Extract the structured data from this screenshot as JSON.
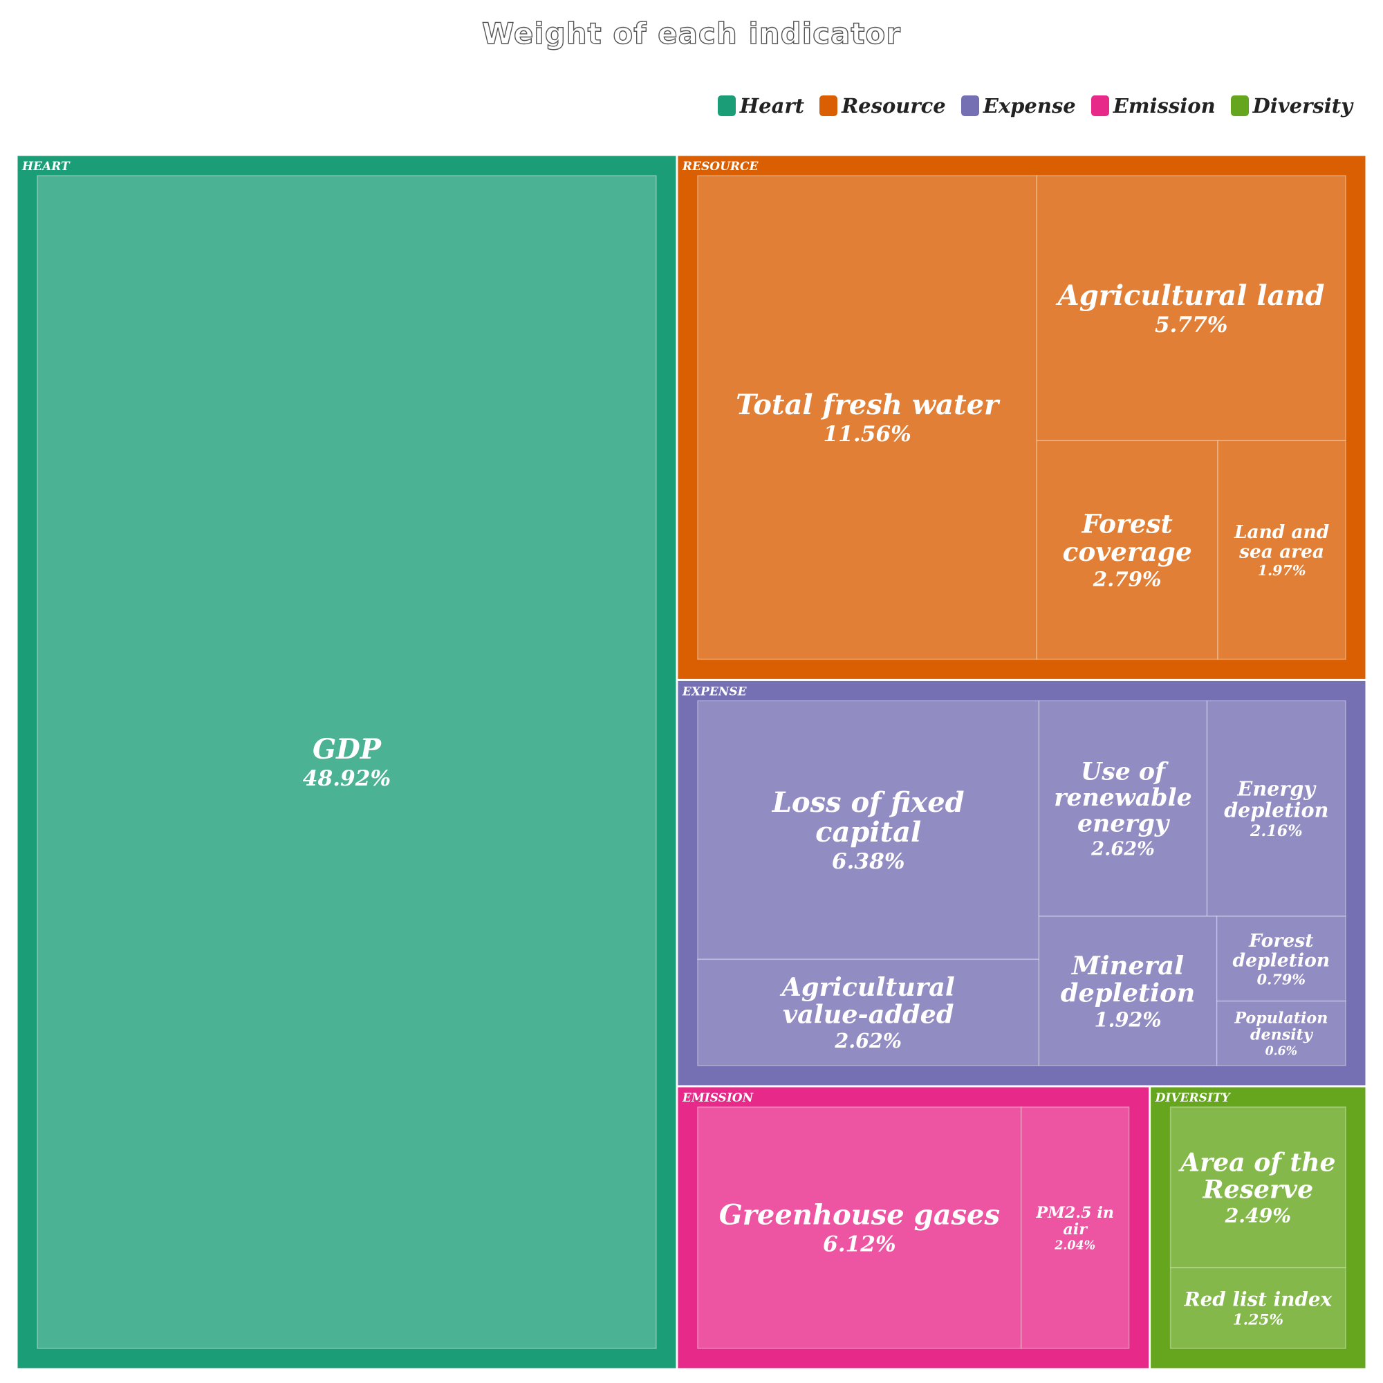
{
  "chart_data": {
    "type": "treemap",
    "title": "Weight of each indicator",
    "legend_position": "top-right",
    "groups": [
      {
        "name": "Heart",
        "label": "HEART",
        "color": "#1b9e77",
        "tile_color": "#4bb293",
        "items": [
          {
            "name": "GDP",
            "value": 48.92,
            "value_label": "48.92%"
          }
        ]
      },
      {
        "name": "Resource",
        "label": "RESOURCE",
        "color": "#d95f02",
        "tile_color": "#e07f35",
        "items": [
          {
            "name": "Total fresh water",
            "value": 11.56,
            "value_label": "11.56%"
          },
          {
            "name": "Agricultural land",
            "value": 5.77,
            "value_label": "5.77%"
          },
          {
            "name": "Forest coverage",
            "value": 2.79,
            "value_label": "2.79%"
          },
          {
            "name": "Land and sea area",
            "value": 1.97,
            "value_label": "1.97%"
          }
        ]
      },
      {
        "name": "Expense",
        "label": "EXPENSE",
        "color": "#7570b3",
        "tile_color": "#918cc2",
        "items": [
          {
            "name": "Loss of fixed capital",
            "value": 6.38,
            "value_label": "6.38%"
          },
          {
            "name": "Agricultural value-added",
            "value": 2.62,
            "value_label": "2.62%"
          },
          {
            "name": "Use of renewable energy",
            "value": 2.62,
            "value_label": "2.62%"
          },
          {
            "name": "Energy depletion",
            "value": 2.16,
            "value_label": "2.16%"
          },
          {
            "name": "Mineral depletion",
            "value": 1.92,
            "value_label": "1.92%"
          },
          {
            "name": "Forest depletion",
            "value": 0.79,
            "value_label": "0.79%"
          },
          {
            "name": "Population density",
            "value": 0.6,
            "value_label": "0.6%"
          }
        ]
      },
      {
        "name": "Emission",
        "label": "EMISSION",
        "color": "#e7298a",
        "tile_color": "#ed54a1",
        "items": [
          {
            "name": "Greenhouse gases",
            "value": 6.12,
            "value_label": "6.12%"
          },
          {
            "name": "PM2.5 in air",
            "value": 2.04,
            "value_label": "2.04%"
          }
        ]
      },
      {
        "name": "Diversity",
        "label": "DIVERSITY",
        "color": "#66a61e",
        "tile_color": "#85b84b",
        "items": [
          {
            "name": "Area of the Reserve",
            "value": 2.49,
            "value_label": "2.49%"
          },
          {
            "name": "Red list index",
            "value": 1.25,
            "value_label": "1.25%"
          }
        ]
      }
    ]
  }
}
